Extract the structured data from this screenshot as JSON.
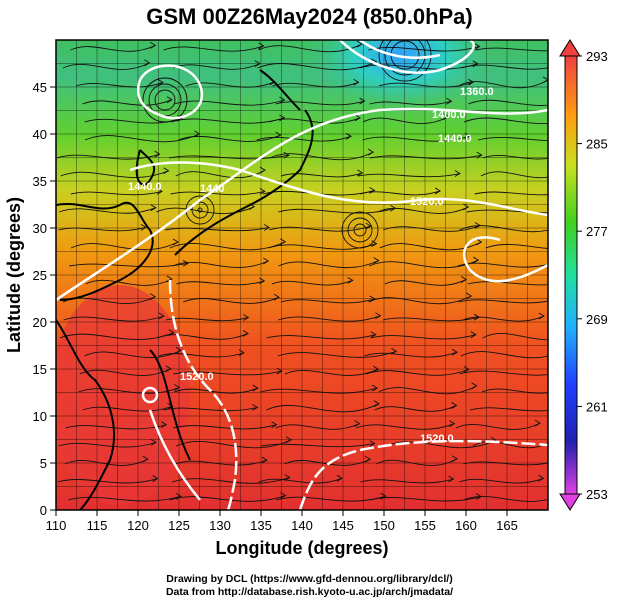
{
  "title": "GSM 00Z26May2024 (850.0hPa)",
  "axes": {
    "xlabel": "Longitude (degrees)",
    "ylabel": "Latitude  (degrees)",
    "xticks": [
      "110",
      "115",
      "120",
      "125",
      "130",
      "135",
      "140",
      "145",
      "150",
      "155",
      "160",
      "165"
    ],
    "yticks": [
      "0",
      "5",
      "10",
      "15",
      "20",
      "25",
      "30",
      "35",
      "40",
      "45"
    ],
    "xlim": [
      110,
      170
    ],
    "ylim": [
      0,
      50
    ]
  },
  "colorbar": {
    "ticks": [
      "293",
      "285",
      "277",
      "269",
      "261",
      "253"
    ],
    "range": [
      253,
      293
    ],
    "colors": [
      "#e040e0",
      "#2020c0",
      "#20a0ff",
      "#20e0a0",
      "#40d020",
      "#b0e020",
      "#ffb000",
      "#ff6020",
      "#f04040"
    ]
  },
  "contours": {
    "labels": [
      "1360.0",
      "1400.0",
      "1440.0",
      "1440.0",
      "1520.0",
      "1440",
      "1520.0",
      "1520.0",
      "1400.0"
    ]
  },
  "marker": {
    "lon": 122,
    "lat": 14,
    "name": "typhoon-position"
  },
  "credits": {
    "line1": "Drawing by DCL (https://www.gfd-dennou.org/library/dcl/)",
    "line2": "Data from http://database.rish.kyoto-u.ac.jp/arch/jmadata/"
  }
}
